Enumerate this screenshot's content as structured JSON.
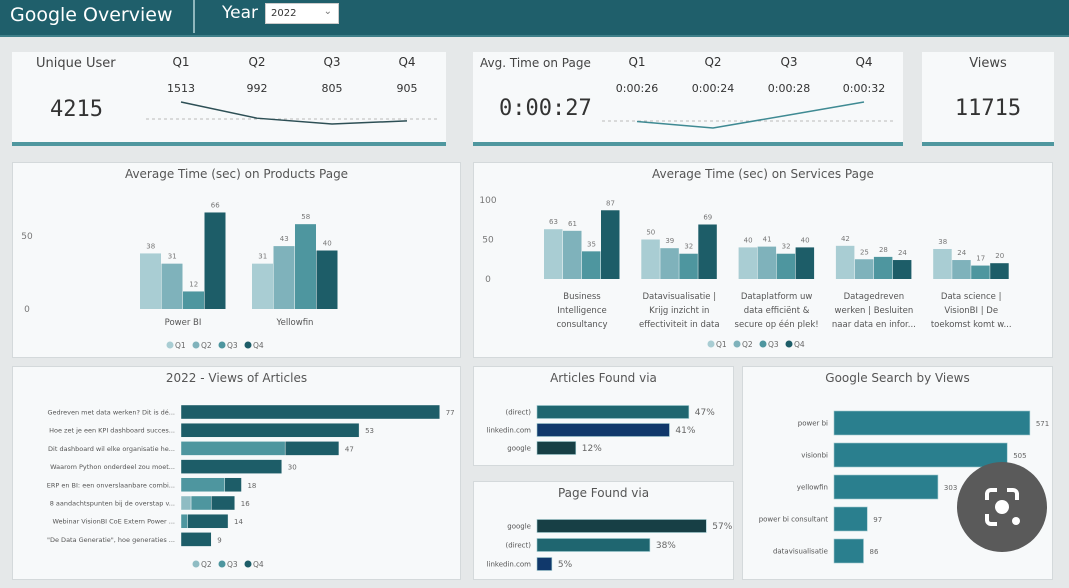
{
  "header": {
    "title": "Google Overview",
    "year_label": "Year",
    "year_value": "2022"
  },
  "kpis": {
    "unique_user": {
      "label": "Unique User",
      "value": "4215",
      "quarters": [
        "Q1",
        "Q2",
        "Q3",
        "Q4"
      ],
      "quarter_values": [
        "1513",
        "992",
        "805",
        "905"
      ]
    },
    "avg_time": {
      "label": "Avg. Time on Page",
      "value": "0:00:27",
      "quarters": [
        "Q1",
        "Q2",
        "Q3",
        "Q4"
      ],
      "quarter_values": [
        "0:00:26",
        "0:00:24",
        "0:00:28",
        "0:00:32"
      ]
    },
    "views": {
      "label": "Views",
      "value": "11715"
    }
  },
  "colors": {
    "header": "#1f5f6b",
    "q1": "#a9cdd3",
    "q2": "#7fb2bb",
    "q3": "#4e969f",
    "q4": "#1d5d68"
  },
  "chart_data": [
    {
      "type": "bar",
      "title": "Average Time (sec) on Products Page",
      "categories": [
        "Power BI",
        "Yellowfin"
      ],
      "series": [
        {
          "name": "Q1",
          "values": [
            38,
            31
          ]
        },
        {
          "name": "Q2",
          "values": [
            31,
            43
          ]
        },
        {
          "name": "Q3",
          "values": [
            12,
            58
          ]
        },
        {
          "name": "Q4",
          "values": [
            66,
            40
          ]
        }
      ],
      "yticks": [
        0,
        50
      ],
      "ylim": [
        0,
        80
      ],
      "legend": "bottom",
      "colors": [
        "#a9cdd3",
        "#7fb2bb",
        "#4e969f",
        "#1d5d68"
      ]
    },
    {
      "type": "bar",
      "title": "Average Time (sec) on Services Page",
      "categories": [
        [
          "Business",
          "Intelligence",
          "consultancy"
        ],
        [
          "Datavisualisatie |",
          "Krijg inzicht in",
          "effectiviteit in data"
        ],
        [
          "Dataplatform uw",
          "data efficiënt &",
          "secure op één plek!"
        ],
        [
          "Datagedreven",
          "werken | Besluiten",
          "naar data en infor..."
        ],
        [
          "Data science |",
          "VisionBI | De",
          "toekomst komt w..."
        ]
      ],
      "series": [
        {
          "name": "Q1",
          "values": [
            63,
            50,
            40,
            42,
            38
          ]
        },
        {
          "name": "Q2",
          "values": [
            61,
            39,
            41,
            25,
            24
          ]
        },
        {
          "name": "Q3",
          "values": [
            35,
            32,
            32,
            28,
            17
          ]
        },
        {
          "name": "Q4",
          "values": [
            87,
            69,
            40,
            24,
            20
          ]
        }
      ],
      "yticks": [
        0,
        50,
        100
      ],
      "ylim": [
        0,
        100
      ],
      "legend": "bottom",
      "colors": [
        "#a9cdd3",
        "#7fb2bb",
        "#4e969f",
        "#1d5d68"
      ]
    },
    {
      "type": "bar",
      "orientation": "horizontal",
      "stacked": true,
      "title": "2022 - Views of Articles",
      "categories": [
        "Gedreven met data werken? Dit is dé...",
        "Hoe zet je een KPI dashboard succes...",
        "Dit dashboard wil elke organisatie he...",
        "Waarom Python onderdeel zou moet...",
        "ERP en BI: een onverslaanbare combi...",
        "8 aandachtspunten bij de overstap v...",
        "Webinar VisionBI CoE Extern Power ...",
        "\"De Data Generatie\", hoe generaties ..."
      ],
      "series": [
        {
          "name": "Q2",
          "values": [
            0,
            0,
            0,
            0,
            0,
            3,
            0,
            0
          ]
        },
        {
          "name": "Q3",
          "values": [
            0,
            0,
            31,
            0,
            13,
            6,
            2,
            0
          ]
        },
        {
          "name": "Q4",
          "values": [
            77,
            53,
            16,
            30,
            5,
            7,
            12,
            9
          ]
        }
      ],
      "totals": [
        77,
        53,
        47,
        30,
        18,
        16,
        14,
        9
      ],
      "legend": "bottom",
      "colors": [
        "#8fbcc3",
        "#4e969f",
        "#1d5d68"
      ]
    },
    {
      "type": "bar",
      "orientation": "horizontal",
      "title": "Articles Found via",
      "categories": [
        "(direct)",
        "linkedin.com",
        "google"
      ],
      "values": [
        47,
        41,
        12
      ],
      "labels": [
        "47%",
        "41%",
        "12%"
      ],
      "colors": [
        "#1f6670",
        "#10386b",
        "#173f45"
      ]
    },
    {
      "type": "bar",
      "orientation": "horizontal",
      "title": "Page Found via",
      "categories": [
        "google",
        "(direct)",
        "linkedin.com"
      ],
      "values": [
        57,
        38,
        5
      ],
      "labels": [
        "57%",
        "38%",
        "5%"
      ],
      "colors": [
        "#173f45",
        "#1f6670",
        "#10386b"
      ]
    },
    {
      "type": "bar",
      "orientation": "horizontal",
      "title": "Google Search by Views",
      "categories": [
        "power bi",
        "visionbi",
        "yellowfin",
        "power bi consultant",
        "datavisualisatie"
      ],
      "values": [
        571,
        505,
        303,
        97,
        86
      ],
      "labels": [
        "571",
        "505",
        "303",
        "97",
        "86"
      ],
      "colors": [
        "#2a7f8e"
      ]
    }
  ]
}
